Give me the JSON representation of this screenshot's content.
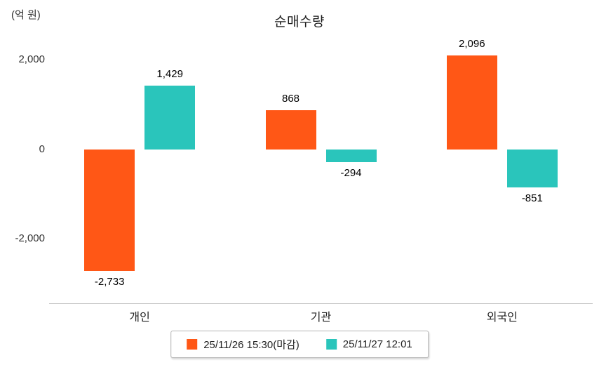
{
  "chart_data": {
    "type": "bar",
    "title": "순매수량",
    "unit_label": "(억 원)",
    "categories": [
      "개인",
      "기관",
      "외국인"
    ],
    "series": [
      {
        "name": "25/11/26 15:30(마감)",
        "color": "#ff5716",
        "values": [
          -2733,
          868,
          2096
        ],
        "value_labels": [
          "-2,733",
          "868",
          "2,096"
        ]
      },
      {
        "name": "25/11/27 12:01",
        "color": "#2ac5bb",
        "values": [
          1429,
          -294,
          -851
        ],
        "value_labels": [
          "1,429",
          "-294",
          "-851"
        ]
      }
    ],
    "ylim": [
      -3450,
      2400
    ],
    "yticks": [
      2000,
      0,
      -2000
    ],
    "ytick_labels": [
      "2,000",
      "0",
      "-2,000"
    ],
    "grid": false,
    "legend_position": "bottom",
    "colors": {
      "axis_line": "#c9c9c9",
      "text": "#222222",
      "background": "#ffffff"
    }
  }
}
